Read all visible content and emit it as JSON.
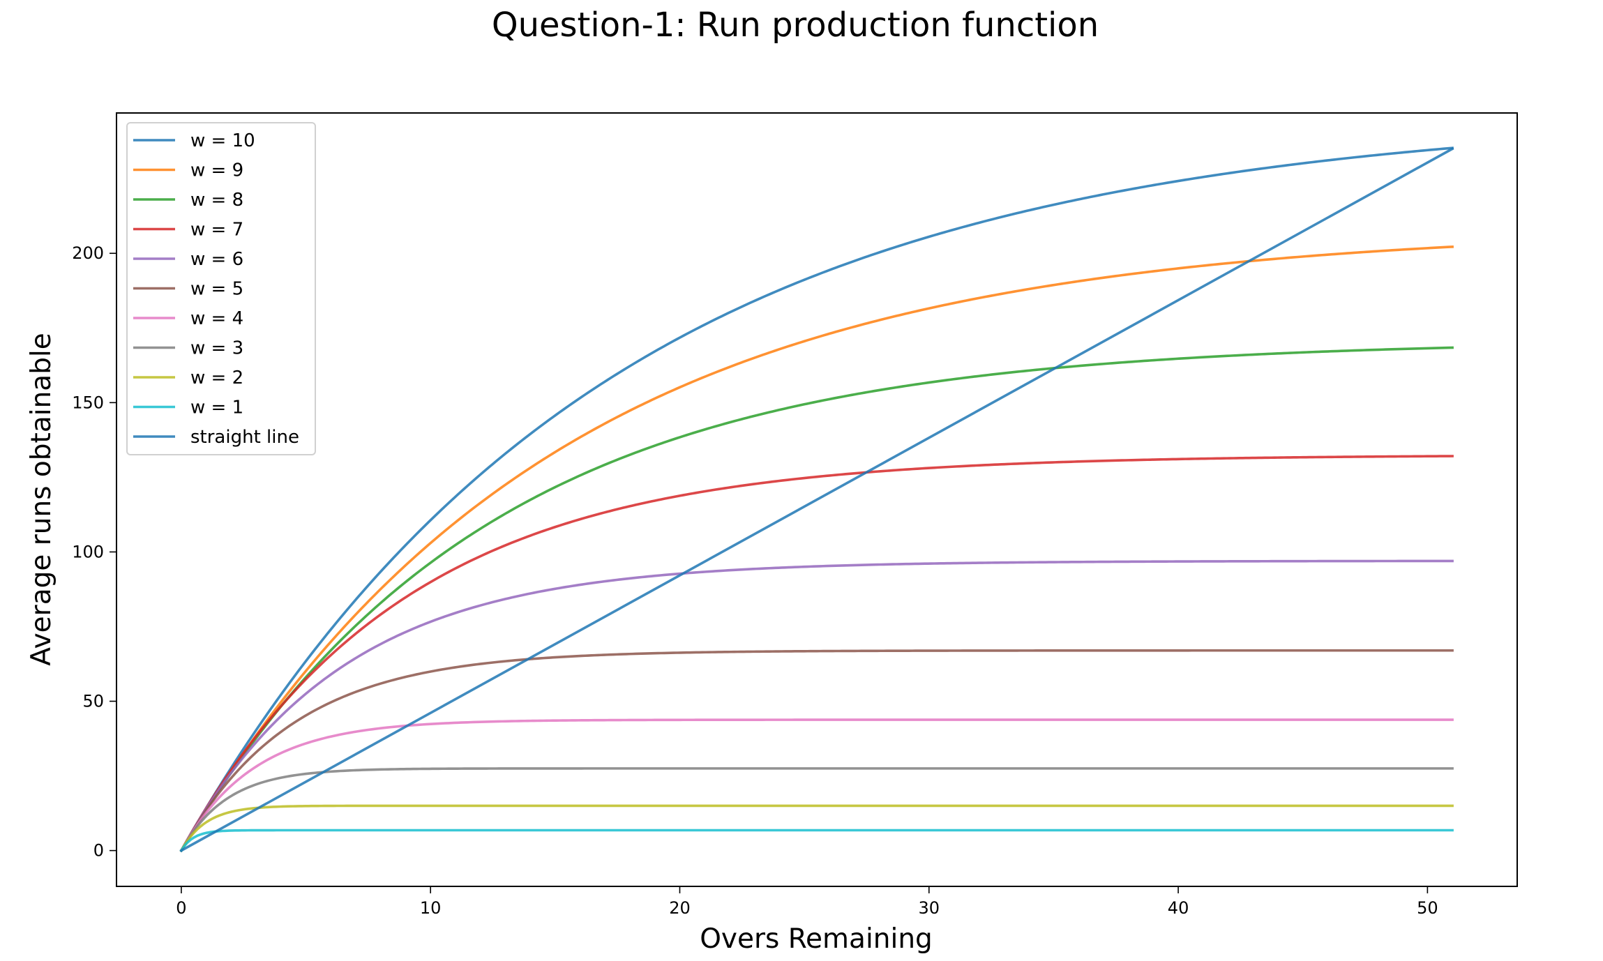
{
  "chart_data": {
    "type": "line",
    "title": "Question-1: Run production function",
    "xlabel": "Overs Remaining",
    "ylabel": "Average runs obtainable",
    "xlim": [
      -2.6,
      53.6
    ],
    "ylim": [
      -12,
      247
    ],
    "xticks": [
      0,
      10,
      20,
      30,
      40,
      50
    ],
    "yticks": [
      0,
      50,
      100,
      150,
      200
    ],
    "grid": false,
    "legend_position": "upper-left",
    "x_range": [
      0,
      51
    ],
    "series": [
      {
        "name": "w = 10",
        "color": "#1f77b4",
        "model": "z0*(1-exp(-b*u))",
        "z0": 247.3,
        "b": 0.0593,
        "x": [
          0,
          10,
          20,
          30,
          40,
          51
        ],
        "y": [
          0,
          111,
          178,
          209,
          226,
          235
        ]
      },
      {
        "name": "w = 9",
        "color": "#ff7f0e",
        "model": "z0*(1-exp(-b*u))",
        "z0": 208.7,
        "b": 0.068,
        "x": [
          0,
          10,
          20,
          30,
          40,
          51
        ],
        "y": [
          0,
          104,
          157,
          183,
          195,
          202
        ]
      },
      {
        "name": "w = 8",
        "color": "#2ca02c",
        "model": "z0*(1-exp(-b*u))",
        "z0": 170.9,
        "b": 0.083,
        "x": [
          0,
          10,
          20,
          30,
          40,
          51
        ],
        "y": [
          0,
          96,
          143,
          158,
          165,
          168.5
        ]
      },
      {
        "name": "w = 7",
        "color": "#d62728",
        "model": "z0*(1-exp(-b*u))",
        "z0": 132.5,
        "b": 0.1135,
        "x": [
          0,
          10,
          20,
          30,
          40,
          51
        ],
        "y": [
          0,
          89,
          120,
          129,
          131.5,
          132.3
        ]
      },
      {
        "name": "w = 6",
        "color": "#9467bd",
        "model": "z0*(1-exp(-b*u))",
        "z0": 97.0,
        "b": 0.156,
        "x": [
          0,
          10,
          20,
          30,
          40,
          51
        ],
        "y": [
          0,
          77,
          94,
          96.3,
          96.9,
          97
        ]
      },
      {
        "name": "w = 5",
        "color": "#8c564b",
        "model": "z0*(1-exp(-b*u))",
        "z0": 67.0,
        "b": 0.225,
        "x": [
          0,
          10,
          20,
          30,
          40,
          51
        ],
        "y": [
          0,
          60,
          66.2,
          66.9,
          67,
          67
        ]
      },
      {
        "name": "w = 4",
        "color": "#e377c2",
        "model": "z0*(1-exp(-b*u))",
        "z0": 43.8,
        "b": 0.342,
        "x": [
          0,
          10,
          20,
          30,
          40,
          51
        ],
        "y": [
          0,
          43.3,
          43.8,
          43.8,
          43.8,
          43.8
        ]
      },
      {
        "name": "w = 3",
        "color": "#7f7f7f",
        "model": "z0*(1-exp(-b*u))",
        "z0": 27.5,
        "b": 0.545,
        "x": [
          0,
          10,
          20,
          30,
          40,
          51
        ],
        "y": [
          0,
          27.5,
          27.5,
          27.5,
          27.5,
          27.5
        ]
      },
      {
        "name": "w = 2",
        "color": "#bcbd22",
        "model": "z0*(1-exp(-b*u))",
        "z0": 15.0,
        "b": 1.0,
        "x": [
          0,
          10,
          20,
          30,
          40,
          51
        ],
        "y": [
          0,
          15,
          15,
          15,
          15,
          15
        ]
      },
      {
        "name": "w = 1",
        "color": "#17becf",
        "model": "z0*(1-exp(-b*u))",
        "z0": 6.8,
        "b": 2.03,
        "x": [
          0,
          10,
          20,
          30,
          40,
          51
        ],
        "y": [
          0,
          6.8,
          6.8,
          6.8,
          6.8,
          6.8
        ]
      },
      {
        "name": "straight line",
        "color": "#1f77b4",
        "model": "linear",
        "x": [
          0,
          51
        ],
        "y": [
          0,
          235
        ]
      }
    ]
  }
}
